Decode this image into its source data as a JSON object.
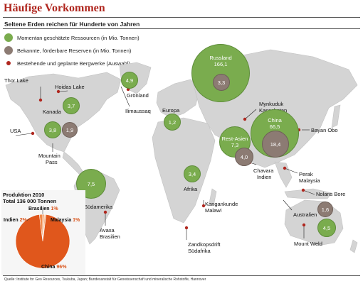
{
  "title": "Häufige Vorkommen",
  "subtitle": "Seltene Erden reichen für Hunderte von Jahren",
  "legend": {
    "resources": "Momentan geschätzte Ressourcen (in Mio. Tonnen)",
    "reserves": "Bekannte, förderbare Reserven (in Mio. Tonnen)",
    "mines": "Bestehende und geplante Bergwerke (Auswahl)"
  },
  "labels": {
    "thor_lake": "Thor Lake",
    "hoidas_lake": "Hoidas Lake",
    "kanada": "Kanada",
    "groenland": "Grönland",
    "ilimaussaq": "Ilimaussaq",
    "usa": "USA",
    "mountain_pass_1": "Mountain",
    "mountain_pass_2": "Pass",
    "europa": "Europa",
    "mynkuduk": "Mynkuduk",
    "kasachstan": "Kasachstan",
    "bayan_obo": "Bayan Obo",
    "chavara": "Chavara",
    "indien": "Indien",
    "perak": "Perak",
    "malaysia": "Malaysia",
    "nolans_bore": "Nolans Bore",
    "australien": "Australien",
    "mount_weld": "Mount Weld",
    "afrika": "Afrika",
    "kangankunde": "Kangankunde",
    "malawi": "Malawi",
    "zandkopsdrift": "Zandkopsdrift",
    "suedafrika": "Südafrika",
    "suedamerika": "Südamerika",
    "avaxa": "Avaxa",
    "brasilien": "Brasilien"
  },
  "bubbles": {
    "groenland": "4,9",
    "kanada": "3,7",
    "usa_res": "3,8",
    "usa_rsv": "1,9",
    "europa": "1,2",
    "suedamerika": "7,5",
    "afrika": "3,4",
    "russland_label": "Russland",
    "russland_res": "166,1",
    "russland_rsv": "3,3",
    "china_label": "China",
    "china_res": "66,5",
    "china_rsv": "18,4",
    "rest_asien_label": "Rest-Asien",
    "rest_asien_res": "7,3",
    "rest_asien_rsv": "4,0",
    "australien_rsv": "1,6",
    "australien_res": "4,5"
  },
  "production": {
    "title": "Produktion 2010",
    "total": "Total 136 000 Tonnen",
    "slices": [
      {
        "name": "China",
        "pct": "96%",
        "value": 96,
        "color": "#e0571c"
      },
      {
        "name": "Indien",
        "pct": "2%",
        "value": 2,
        "color": "#f08a4b"
      },
      {
        "name": "Brasilien",
        "pct": "1%",
        "value": 1,
        "color": "#f4a26e"
      },
      {
        "name": "Malaysia",
        "pct": "1%",
        "value": 1,
        "color": "#f7b98e"
      }
    ]
  },
  "chart_data": {
    "type": "pie",
    "title": "Produktion 2010",
    "subtitle": "Total 136 000 Tonnen",
    "categories": [
      "China",
      "Indien",
      "Brasilien",
      "Malaysia"
    ],
    "values": [
      96,
      2,
      1,
      1
    ]
  },
  "source": "Quelle: Institute for Geo Resources, Tsukuba, Japan; Bundesanstalt für Geowissenschaft und mineralische Rohstoffe, Hannover"
}
